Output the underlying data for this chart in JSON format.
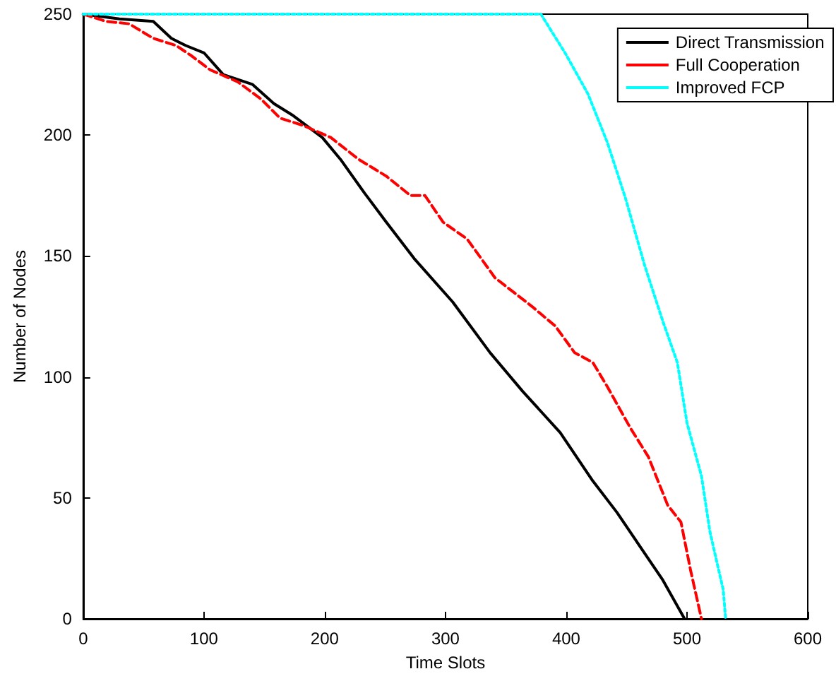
{
  "chart_data": {
    "type": "line",
    "xlabel": "Time Slots",
    "ylabel": "Number of Nodes",
    "xlim": [
      0,
      600
    ],
    "xticks": [
      0,
      100,
      200,
      300,
      400,
      500,
      600
    ],
    "ylim": [
      0,
      250
    ],
    "yticks": [
      0,
      50,
      100,
      150,
      200,
      250
    ],
    "grid": false,
    "legend": "top right",
    "marker": "none",
    "series": [
      {
        "name": "Direct Transmission",
        "color": "#000000",
        "line_style": "solid",
        "x": [
          0,
          30,
          58,
          73,
          85,
          100,
          116,
          140,
          158,
          174,
          198,
          213,
          233,
          251,
          274,
          306,
          337,
          364,
          395,
          422,
          442,
          461,
          480,
          498
        ],
        "values": [
          250,
          248,
          247,
          240,
          237,
          234,
          225,
          221,
          213,
          208,
          199,
          190,
          176,
          164,
          149,
          131,
          110,
          94,
          77,
          57,
          44,
          30,
          16,
          0
        ]
      },
      {
        "name": "Full Cooperation",
        "color": "#ff0000",
        "line_style": "dashed",
        "x": [
          0,
          19,
          38,
          58,
          77,
          89,
          105,
          128,
          147,
          163,
          182,
          205,
          228,
          251,
          271,
          283,
          298,
          318,
          341,
          372,
          391,
          407,
          422,
          434,
          453,
          468,
          484,
          495,
          503,
          512
        ],
        "values": [
          250,
          247,
          246,
          240,
          237,
          233,
          227,
          222,
          215,
          207,
          204,
          199,
          190,
          183,
          175,
          175,
          164,
          157,
          141,
          129,
          121,
          110,
          106,
          96,
          79,
          67,
          47,
          40,
          20,
          0
        ]
      },
      {
        "name": "Improved FCP",
        "color": "#00ffff",
        "line_style": "dotted",
        "x": [
          0,
          379,
          399,
          418,
          434,
          449,
          465,
          480,
          492,
          500,
          512,
          519,
          530,
          532
        ],
        "values": [
          250,
          250,
          234,
          217,
          197,
          174,
          146,
          123,
          106,
          81,
          59,
          36,
          12,
          0
        ]
      }
    ]
  }
}
